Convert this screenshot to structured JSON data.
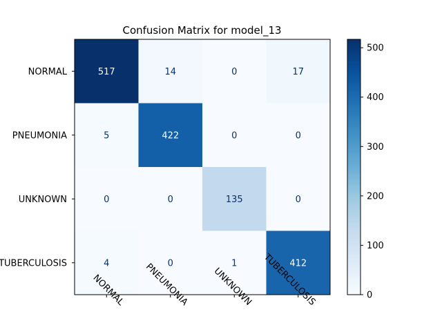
{
  "chart_data": {
    "type": "heatmap",
    "title": "Confusion Matrix for model_13",
    "xlabel": "",
    "ylabel": "",
    "row_labels": [
      "NORMAL",
      "PNEUMONIA",
      "UNKNOWN",
      "TUBERCULOSIS"
    ],
    "col_labels": [
      "NORMAL",
      "PNEUMONIA",
      "UNKNOWN",
      "TUBERCULOSIS"
    ],
    "values": [
      [
        517,
        14,
        0,
        17
      ],
      [
        5,
        422,
        0,
        0
      ],
      [
        0,
        0,
        135,
        0
      ],
      [
        4,
        0,
        1,
        412
      ]
    ],
    "colormap": "Blues",
    "vmin": 0,
    "vmax": 517,
    "colorbar_ticks": [
      0,
      100,
      200,
      300,
      400,
      500
    ],
    "text_colors": {
      "dark": "#08306b",
      "light": "#f7fbff"
    }
  }
}
